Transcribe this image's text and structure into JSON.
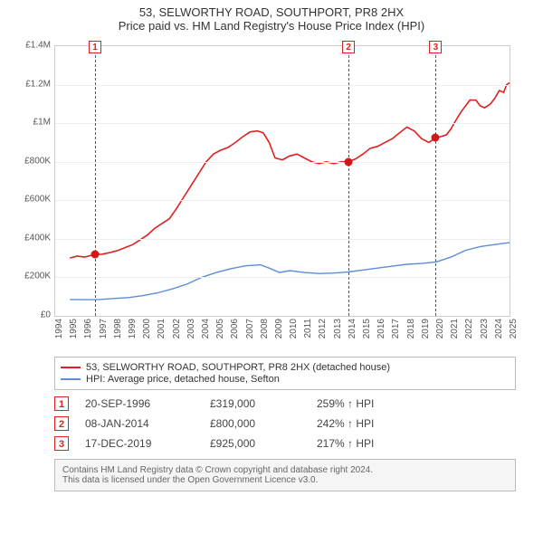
{
  "title": {
    "main": "53, SELWORTHY ROAD, SOUTHPORT, PR8 2HX",
    "sub": "Price paid vs. HM Land Registry's House Price Index (HPI)"
  },
  "chart": {
    "type": "line",
    "background": "#ffffff",
    "grid_color": "#eeeeee",
    "axis_color": "#cccccc",
    "x": {
      "min": 1994,
      "max": 2025,
      "step": 1,
      "ticks": [
        1994,
        1995,
        1996,
        1997,
        1998,
        1999,
        2000,
        2001,
        2002,
        2003,
        2004,
        2005,
        2006,
        2007,
        2008,
        2009,
        2010,
        2011,
        2012,
        2013,
        2014,
        2015,
        2016,
        2017,
        2018,
        2019,
        2020,
        2021,
        2022,
        2023,
        2024,
        2025
      ]
    },
    "y": {
      "min": 0,
      "max": 1400000,
      "step": 200000,
      "ticks": [
        {
          "v": 0,
          "label": "£0"
        },
        {
          "v": 200000,
          "label": "£200K"
        },
        {
          "v": 400000,
          "label": "£400K"
        },
        {
          "v": 600000,
          "label": "£600K"
        },
        {
          "v": 800000,
          "label": "£800K"
        },
        {
          "v": 1000000,
          "label": "£1M"
        },
        {
          "v": 1200000,
          "label": "£1.2M"
        },
        {
          "v": 1400000,
          "label": "£1.4M"
        }
      ]
    },
    "series": [
      {
        "key": "property",
        "label": "53, SELWORTHY ROAD, SOUTHPORT, PR8 2HX (detached house)",
        "color": "#e02020",
        "line_width": 1.6,
        "data": [
          [
            1995.0,
            300000
          ],
          [
            1995.5,
            310000
          ],
          [
            1996.0,
            305000
          ],
          [
            1996.7,
            319000
          ],
          [
            1997.2,
            320000
          ],
          [
            1997.8,
            330000
          ],
          [
            1998.3,
            340000
          ],
          [
            1998.8,
            355000
          ],
          [
            1999.3,
            370000
          ],
          [
            1999.8,
            395000
          ],
          [
            2000.3,
            420000
          ],
          [
            2000.8,
            455000
          ],
          [
            2001.3,
            480000
          ],
          [
            2001.8,
            505000
          ],
          [
            2002.3,
            560000
          ],
          [
            2002.8,
            620000
          ],
          [
            2003.3,
            680000
          ],
          [
            2003.8,
            740000
          ],
          [
            2004.3,
            800000
          ],
          [
            2004.8,
            840000
          ],
          [
            2005.3,
            860000
          ],
          [
            2005.8,
            875000
          ],
          [
            2006.3,
            900000
          ],
          [
            2006.8,
            930000
          ],
          [
            2007.3,
            955000
          ],
          [
            2007.8,
            960000
          ],
          [
            2008.2,
            950000
          ],
          [
            2008.6,
            900000
          ],
          [
            2009.0,
            820000
          ],
          [
            2009.5,
            810000
          ],
          [
            2010.0,
            830000
          ],
          [
            2010.5,
            840000
          ],
          [
            2011.0,
            820000
          ],
          [
            2011.5,
            800000
          ],
          [
            2012.0,
            790000
          ],
          [
            2012.5,
            800000
          ],
          [
            2013.0,
            790000
          ],
          [
            2013.5,
            800000
          ],
          [
            2014.0,
            800000
          ],
          [
            2014.5,
            815000
          ],
          [
            2015.0,
            840000
          ],
          [
            2015.5,
            870000
          ],
          [
            2016.0,
            880000
          ],
          [
            2016.5,
            900000
          ],
          [
            2017.0,
            920000
          ],
          [
            2017.5,
            950000
          ],
          [
            2018.0,
            980000
          ],
          [
            2018.5,
            960000
          ],
          [
            2019.0,
            920000
          ],
          [
            2019.5,
            900000
          ],
          [
            2019.96,
            925000
          ],
          [
            2020.3,
            930000
          ],
          [
            2020.7,
            940000
          ],
          [
            2021.0,
            970000
          ],
          [
            2021.3,
            1010000
          ],
          [
            2021.7,
            1060000
          ],
          [
            2022.0,
            1090000
          ],
          [
            2022.3,
            1120000
          ],
          [
            2022.7,
            1120000
          ],
          [
            2023.0,
            1090000
          ],
          [
            2023.3,
            1080000
          ],
          [
            2023.7,
            1100000
          ],
          [
            2024.0,
            1130000
          ],
          [
            2024.3,
            1170000
          ],
          [
            2024.6,
            1160000
          ],
          [
            2024.8,
            1200000
          ],
          [
            2025.0,
            1210000
          ]
        ]
      },
      {
        "key": "hpi",
        "label": "HPI: Average price, detached house, Sefton",
        "color": "#5a8fd6",
        "line_width": 1.4,
        "data": [
          [
            1995.0,
            85000
          ],
          [
            1996.0,
            84000
          ],
          [
            1997.0,
            85000
          ],
          [
            1998.0,
            90000
          ],
          [
            1999.0,
            95000
          ],
          [
            2000.0,
            105000
          ],
          [
            2001.0,
            120000
          ],
          [
            2002.0,
            140000
          ],
          [
            2003.0,
            165000
          ],
          [
            2004.0,
            200000
          ],
          [
            2005.0,
            225000
          ],
          [
            2006.0,
            245000
          ],
          [
            2007.0,
            260000
          ],
          [
            2008.0,
            265000
          ],
          [
            2008.7,
            245000
          ],
          [
            2009.3,
            225000
          ],
          [
            2010.0,
            235000
          ],
          [
            2011.0,
            225000
          ],
          [
            2012.0,
            220000
          ],
          [
            2013.0,
            222000
          ],
          [
            2014.0,
            228000
          ],
          [
            2015.0,
            238000
          ],
          [
            2016.0,
            248000
          ],
          [
            2017.0,
            258000
          ],
          [
            2018.0,
            268000
          ],
          [
            2019.0,
            272000
          ],
          [
            2020.0,
            280000
          ],
          [
            2021.0,
            305000
          ],
          [
            2022.0,
            340000
          ],
          [
            2023.0,
            360000
          ],
          [
            2024.0,
            370000
          ],
          [
            2025.0,
            380000
          ]
        ]
      }
    ],
    "markers": [
      {
        "id": "1",
        "x": 1996.72,
        "y": 319000,
        "color": "#e02020",
        "point_color": "#d01818"
      },
      {
        "id": "2",
        "x": 2014.02,
        "y": 800000,
        "color": "#e02020",
        "point_color": "#d01818"
      },
      {
        "id": "3",
        "x": 2019.96,
        "y": 925000,
        "color": "#e02020",
        "point_color": "#d01818"
      }
    ]
  },
  "legend": {
    "rows": [
      {
        "color": "#e02020",
        "text": "53, SELWORTHY ROAD, SOUTHPORT, PR8 2HX (detached house)"
      },
      {
        "color": "#5a8fd6",
        "text": "HPI: Average price, detached house, Sefton"
      }
    ]
  },
  "transactions": [
    {
      "id": "1",
      "date": "20-SEP-1996",
      "price": "£319,000",
      "hpi": "259% ↑ HPI",
      "badge_color": "#e02020"
    },
    {
      "id": "2",
      "date": "08-JAN-2014",
      "price": "£800,000",
      "hpi": "242% ↑ HPI",
      "badge_color": "#e02020"
    },
    {
      "id": "3",
      "date": "17-DEC-2019",
      "price": "£925,000",
      "hpi": "217% ↑ HPI",
      "badge_color": "#e02020"
    }
  ],
  "footer": {
    "line1": "Contains HM Land Registry data © Crown copyright and database right 2024.",
    "line2": "This data is licensed under the Open Government Licence v3.0."
  }
}
